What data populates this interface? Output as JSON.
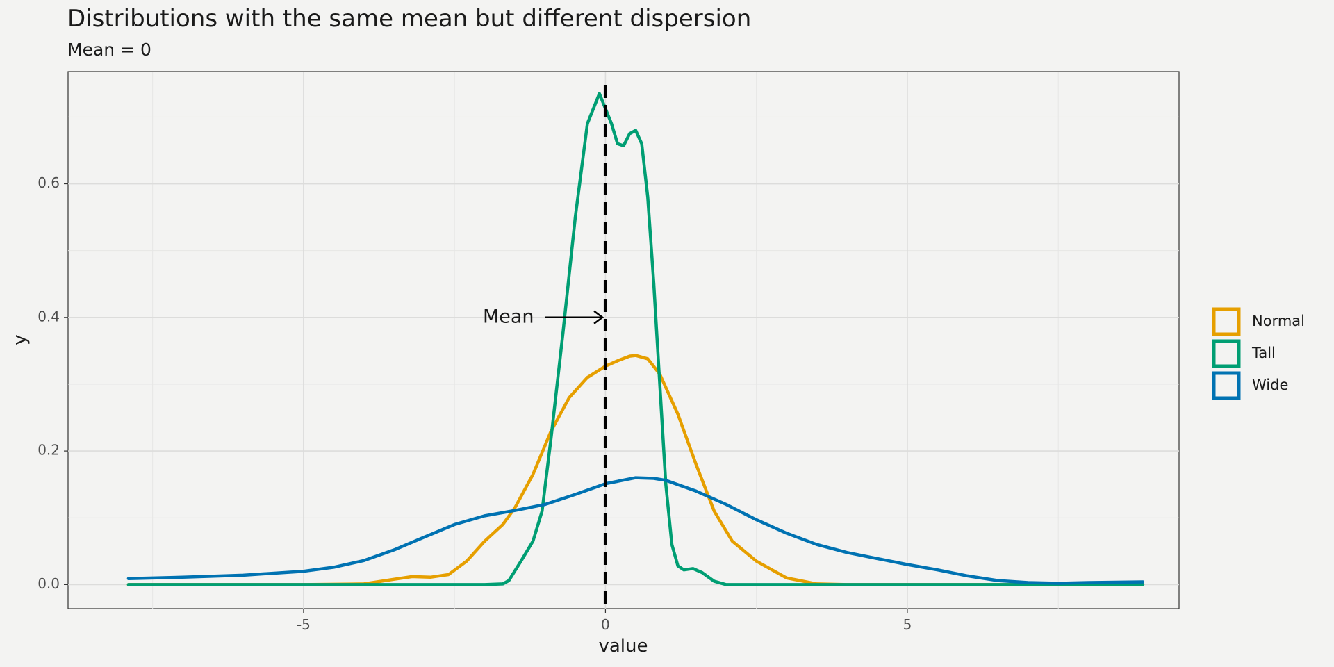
{
  "chart_data": {
    "type": "line",
    "title": "Distributions with the same mean but different dispersion",
    "subtitle": "Mean = 0",
    "xlabel": "value",
    "ylabel": "y",
    "xlim": [
      -8.9,
      9.5
    ],
    "ylim": [
      -0.036,
      0.768
    ],
    "x_ticks": [
      -5,
      0,
      5
    ],
    "x_tick_labels": [
      "-5",
      "0",
      "5"
    ],
    "y_ticks": [
      0.0,
      0.2,
      0.4,
      0.6
    ],
    "y_tick_labels": [
      "0.0",
      "0.2",
      "0.4",
      "0.6"
    ],
    "grid": true,
    "legend_position": "right",
    "mean_line": {
      "x": 0,
      "style": "dashed",
      "color": "#000000"
    },
    "annotation": {
      "text": "Mean",
      "arrow_from": [
        -1.0,
        0.4
      ],
      "arrow_to": [
        -0.05,
        0.4
      ]
    },
    "series": [
      {
        "name": "Normal",
        "color": "#E69F00",
        "points": [
          [
            -7.9,
            0.0
          ],
          [
            -5,
            0.0
          ],
          [
            -4,
            0.001
          ],
          [
            -3.5,
            0.008
          ],
          [
            -3.2,
            0.012
          ],
          [
            -2.9,
            0.011
          ],
          [
            -2.6,
            0.015
          ],
          [
            -2.3,
            0.035
          ],
          [
            -2,
            0.065
          ],
          [
            -1.7,
            0.09
          ],
          [
            -1.5,
            0.115
          ],
          [
            -1.2,
            0.165
          ],
          [
            -0.9,
            0.23
          ],
          [
            -0.6,
            0.28
          ],
          [
            -0.3,
            0.31
          ],
          [
            0,
            0.327
          ],
          [
            0.2,
            0.335
          ],
          [
            0.4,
            0.342
          ],
          [
            0.5,
            0.343
          ],
          [
            0.7,
            0.338
          ],
          [
            0.9,
            0.315
          ],
          [
            1.2,
            0.255
          ],
          [
            1.5,
            0.18
          ],
          [
            1.8,
            0.11
          ],
          [
            2.1,
            0.065
          ],
          [
            2.5,
            0.035
          ],
          [
            3,
            0.01
          ],
          [
            3.5,
            0.001
          ],
          [
            4,
            0.0
          ],
          [
            8.9,
            0.0
          ]
        ]
      },
      {
        "name": "Tall",
        "color": "#009E73",
        "points": [
          [
            -7.9,
            0.0
          ],
          [
            -2,
            0.0
          ],
          [
            -1.7,
            0.001
          ],
          [
            -1.6,
            0.006
          ],
          [
            -1.4,
            0.035
          ],
          [
            -1.2,
            0.065
          ],
          [
            -1.05,
            0.11
          ],
          [
            -0.9,
            0.22
          ],
          [
            -0.7,
            0.38
          ],
          [
            -0.5,
            0.55
          ],
          [
            -0.3,
            0.69
          ],
          [
            -0.1,
            0.735
          ],
          [
            0.1,
            0.69
          ],
          [
            0.2,
            0.66
          ],
          [
            0.3,
            0.657
          ],
          [
            0.4,
            0.675
          ],
          [
            0.5,
            0.68
          ],
          [
            0.6,
            0.66
          ],
          [
            0.7,
            0.58
          ],
          [
            0.8,
            0.45
          ],
          [
            0.9,
            0.3
          ],
          [
            1.0,
            0.15
          ],
          [
            1.1,
            0.06
          ],
          [
            1.2,
            0.028
          ],
          [
            1.3,
            0.022
          ],
          [
            1.45,
            0.024
          ],
          [
            1.6,
            0.018
          ],
          [
            1.8,
            0.005
          ],
          [
            2.0,
            0.0
          ],
          [
            8.9,
            0.0
          ]
        ]
      },
      {
        "name": "Wide",
        "color": "#0072B2",
        "points": [
          [
            -7.9,
            0.009
          ],
          [
            -7,
            0.011
          ],
          [
            -6,
            0.014
          ],
          [
            -5,
            0.02
          ],
          [
            -4.5,
            0.026
          ],
          [
            -4,
            0.036
          ],
          [
            -3.5,
            0.052
          ],
          [
            -3,
            0.071
          ],
          [
            -2.5,
            0.09
          ],
          [
            -2,
            0.103
          ],
          [
            -1.5,
            0.111
          ],
          [
            -1,
            0.12
          ],
          [
            -0.5,
            0.135
          ],
          [
            0,
            0.151
          ],
          [
            0.5,
            0.16
          ],
          [
            0.8,
            0.159
          ],
          [
            1,
            0.156
          ],
          [
            1.5,
            0.14
          ],
          [
            2,
            0.12
          ],
          [
            2.5,
            0.097
          ],
          [
            3,
            0.077
          ],
          [
            3.5,
            0.06
          ],
          [
            4,
            0.048
          ],
          [
            4.5,
            0.039
          ],
          [
            5,
            0.03
          ],
          [
            5.5,
            0.022
          ],
          [
            6,
            0.013
          ],
          [
            6.5,
            0.006
          ],
          [
            7,
            0.003
          ],
          [
            7.5,
            0.002
          ],
          [
            8,
            0.003
          ],
          [
            8.9,
            0.004
          ]
        ]
      }
    ]
  }
}
